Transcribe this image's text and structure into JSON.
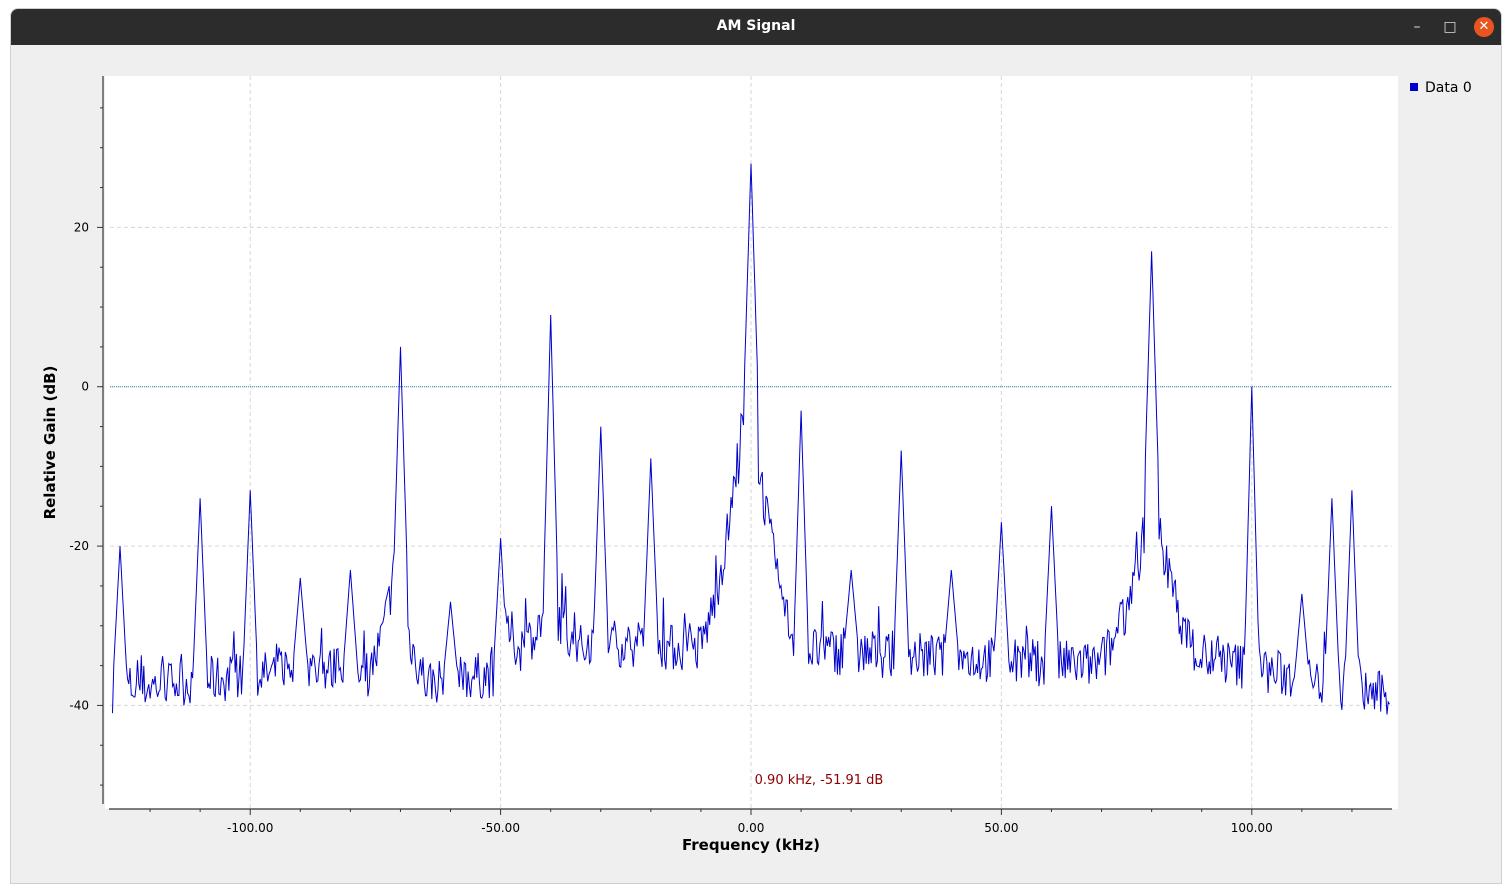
{
  "window": {
    "title": "AM Signal",
    "minimize_icon": "minimize-icon",
    "maximize_icon": "maximize-icon",
    "close_icon": "close-icon"
  },
  "chart_data": {
    "type": "line",
    "title": "",
    "xlabel": "Frequency (kHz)",
    "ylabel": "Relative Gain (dB)",
    "xlim": [
      -128,
      128
    ],
    "ylim": [
      -53,
      39
    ],
    "grid": true,
    "legend_position": "right",
    "x_ticks": [
      -100,
      -50,
      0,
      50,
      100
    ],
    "x_tick_labels": [
      "-100.00",
      "-50.00",
      "0.00",
      "50.00",
      "100.00"
    ],
    "y_ticks": [
      -40,
      -20,
      0,
      20
    ],
    "y_tick_labels": [
      "-40",
      "-20",
      "0",
      "20"
    ],
    "marker_text": "0.90 kHz, -51.91 dB",
    "reference_line_db": 0,
    "colors": {
      "series": "#0000cc",
      "reference": "#2a8fb5",
      "marker": "#8b0000",
      "grid": "#d6d6d6"
    },
    "series": [
      {
        "name": "Data 0",
        "noise_segments": [
          {
            "x": [
              -128,
              -95
            ],
            "y": [
              -38,
              -36
            ]
          },
          {
            "x": [
              -95,
              -75
            ],
            "y": [
              -35,
              -36
            ]
          },
          {
            "x": [
              -65,
              -50
            ],
            "y": [
              -37,
              -36
            ]
          },
          {
            "x": [
              -50,
              -30
            ],
            "y": [
              -31,
              -32
            ]
          },
          {
            "x": [
              -30,
              -11
            ],
            "y": [
              -32,
              -33
            ]
          },
          {
            "x": [
              10,
              70
            ],
            "y": [
              -33,
              -35
            ]
          },
          {
            "x": [
              90,
              128
            ],
            "y": [
              -34,
              -39
            ]
          }
        ],
        "hump_segments": [
          {
            "x": [
              -76,
              -66
            ],
            "peak": -22,
            "base": -35
          },
          {
            "x": [
              -47,
              -33
            ],
            "peak": -27,
            "base": -33
          },
          {
            "x": [
              -11,
              10
            ],
            "peak": 0,
            "base": -33
          },
          {
            "x": [
              70,
              90
            ],
            "peak": -14,
            "base": -34
          }
        ],
        "peaks": [
          {
            "x": -126,
            "y": -20
          },
          {
            "x": -110,
            "y": -14
          },
          {
            "x": -100,
            "y": -13
          },
          {
            "x": -90,
            "y": -24
          },
          {
            "x": -80,
            "y": -23
          },
          {
            "x": -70,
            "y": 5
          },
          {
            "x": -60,
            "y": -27
          },
          {
            "x": -50,
            "y": -19
          },
          {
            "x": -40,
            "y": 9
          },
          {
            "x": -30,
            "y": -5
          },
          {
            "x": -20,
            "y": -9
          },
          {
            "x": 0,
            "y": 28
          },
          {
            "x": 10,
            "y": -3
          },
          {
            "x": 20,
            "y": -23
          },
          {
            "x": 30,
            "y": -8
          },
          {
            "x": 40,
            "y": -23
          },
          {
            "x": 50,
            "y": -17
          },
          {
            "x": 60,
            "y": -15
          },
          {
            "x": 80,
            "y": 17
          },
          {
            "x": 100,
            "y": 0
          },
          {
            "x": 110,
            "y": -26
          },
          {
            "x": 116,
            "y": -14
          },
          {
            "x": 120,
            "y": -13
          }
        ]
      }
    ]
  }
}
